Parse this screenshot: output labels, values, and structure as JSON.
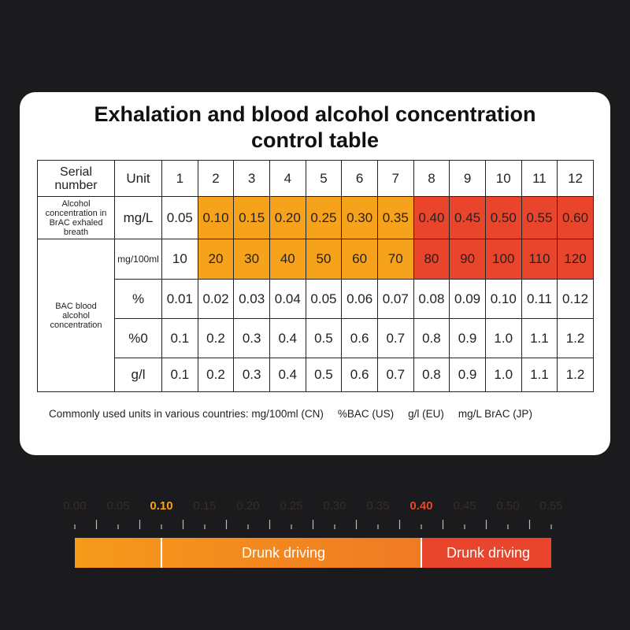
{
  "title": "Exhalation and blood alcohol concentration control table",
  "table": {
    "header": [
      "Serial number",
      "Unit",
      "1",
      "2",
      "3",
      "4",
      "5",
      "6",
      "7",
      "8",
      "9",
      "10",
      "11",
      "12"
    ],
    "groups": [
      {
        "label": "Alcohol concentration in BrAC exhaled breath",
        "rows": [
          {
            "unit": "mg/L",
            "cells": [
              "0.05",
              "0.10",
              "0.15",
              "0.20",
              "0.25",
              "0.30",
              "0.35",
              "0.40",
              "0.45",
              "0.50",
              "0.55",
              "0.60"
            ]
          }
        ]
      },
      {
        "label": "BAC blood alcohol concentration",
        "rows": [
          {
            "unit": "mg/100ml",
            "cells": [
              "10",
              "20",
              "30",
              "40",
              "50",
              "60",
              "70",
              "80",
              "90",
              "100",
              "110",
              "120"
            ]
          },
          {
            "unit": "%",
            "cells": [
              "0.01",
              "0.02",
              "0.03",
              "0.04",
              "0.05",
              "0.06",
              "0.07",
              "0.08",
              "0.09",
              "0.10",
              "0.11",
              "0.12"
            ]
          },
          {
            "unit": "%0",
            "cells": [
              "0.1",
              "0.2",
              "0.3",
              "0.4",
              "0.5",
              "0.6",
              "0.7",
              "0.8",
              "0.9",
              "1.0",
              "1.1",
              "1.2"
            ]
          },
          {
            "unit": "g/l",
            "cells": [
              "0.1",
              "0.2",
              "0.3",
              "0.4",
              "0.5",
              "0.6",
              "0.7",
              "0.8",
              "0.9",
              "1.0",
              "1.1",
              "1.2"
            ]
          }
        ]
      }
    ]
  },
  "footnote": [
    "Commonly used units in various countries: mg/100ml (CN)",
    "%BAC (US)",
    "g/l (EU)",
    "mg/L BrAC (JP)"
  ],
  "scale": {
    "labels": [
      "0.00",
      "0.05",
      "0.10",
      "0.15",
      "0.20",
      "0.25",
      "0.30",
      "0.35",
      "0.40",
      "0.45",
      "0.50",
      "0.55"
    ],
    "bands": [
      "Drunk driving",
      "Drunk driving"
    ]
  }
}
